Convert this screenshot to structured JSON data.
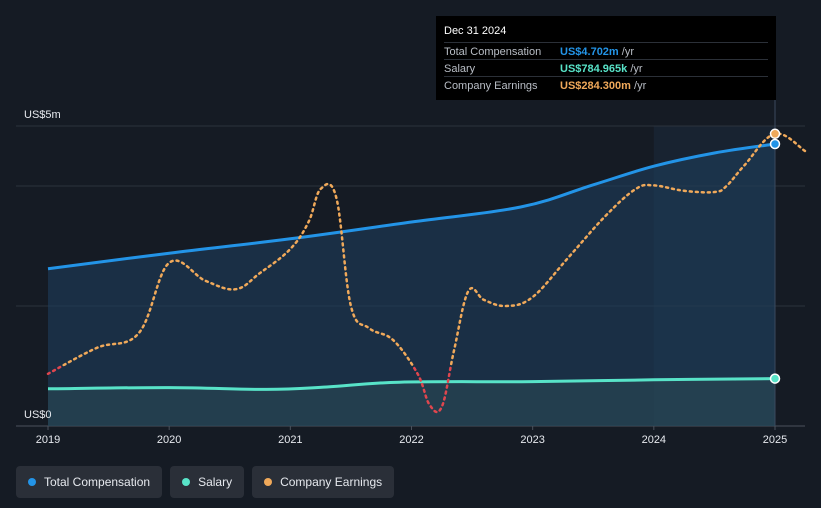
{
  "tooltip": {
    "date": "Dec 31 2024",
    "rows": [
      {
        "label": "Total Compensation",
        "value": "US$4.702m",
        "unit": " /yr",
        "color": "#2394e7"
      },
      {
        "label": "Salary",
        "value": "US$784.965k",
        "unit": " /yr",
        "color": "#58e3c8"
      },
      {
        "label": "Company Earnings",
        "value": "US$284.300m",
        "unit": " /yr",
        "color": "#f0a95a"
      }
    ]
  },
  "y_axis": {
    "top_label": "US$5m",
    "bottom_label": "US$0"
  },
  "legend": [
    {
      "label": "Total Compensation",
      "color": "#2394e7"
    },
    {
      "label": "Salary",
      "color": "#58e3c8"
    },
    {
      "label": "Company Earnings",
      "color": "#f0a95a"
    }
  ],
  "chart_data": {
    "type": "line",
    "title": "",
    "xlabel": "",
    "ylabel": "",
    "x_ticks": [
      "2019",
      "2020",
      "2021",
      "2022",
      "2023",
      "2024",
      "2025"
    ],
    "x_domain": [
      2019.0,
      2025.25
    ],
    "ylim": [
      0,
      5
    ],
    "grid": true,
    "legend_position": "bottom-left",
    "highlight_from": 2024.0,
    "highlight_to": 2025.0,
    "series": [
      {
        "name": "Total Compensation",
        "color": "#2394e7",
        "style": "solid",
        "area": true,
        "x": [
          2019.0,
          2020.0,
          2021.0,
          2022.0,
          2022.9,
          2023.5,
          2024.0,
          2024.5,
          2025.0
        ],
        "y": [
          2.62,
          2.88,
          3.12,
          3.4,
          3.65,
          4.02,
          4.33,
          4.55,
          4.7
        ]
      },
      {
        "name": "Salary",
        "color": "#58e3c8",
        "style": "solid",
        "area": true,
        "x": [
          2019.0,
          2020.0,
          2020.8,
          2021.3,
          2021.9,
          2023.0,
          2024.0,
          2025.0
        ],
        "y": [
          0.62,
          0.64,
          0.61,
          0.65,
          0.73,
          0.74,
          0.77,
          0.79
        ]
      },
      {
        "name": "Company Earnings",
        "color": "#f0a95a",
        "low_color": "#e0464e",
        "style": "dotted",
        "area": false,
        "low_threshold_y": 1.0,
        "x": [
          2019.0,
          2019.4,
          2019.75,
          2020.0,
          2020.3,
          2020.55,
          2020.75,
          2021.0,
          2021.15,
          2021.25,
          2021.38,
          2021.5,
          2021.65,
          2021.85,
          2022.05,
          2022.15,
          2022.25,
          2022.35,
          2022.47,
          2022.6,
          2022.78,
          2023.0,
          2023.3,
          2023.6,
          2023.85,
          2024.0,
          2024.25,
          2024.5,
          2024.6,
          2024.75,
          2025.0,
          2025.25
        ],
        "y": [
          0.87,
          1.3,
          1.55,
          2.72,
          2.42,
          2.28,
          2.55,
          2.95,
          3.4,
          3.95,
          3.8,
          2.0,
          1.63,
          1.43,
          0.87,
          0.35,
          0.32,
          1.25,
          2.25,
          2.1,
          2.0,
          2.15,
          2.82,
          3.5,
          3.95,
          4.01,
          3.92,
          3.9,
          4.0,
          4.35,
          4.87,
          4.58
        ]
      }
    ]
  }
}
